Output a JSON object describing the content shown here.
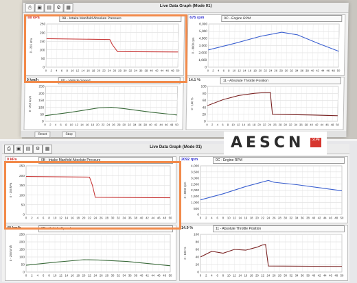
{
  "window_title": "Live Data Graph (Mode 01)",
  "toolbar_icons": [
    "print-icon",
    "save-icon",
    "open-folder-icon",
    "settings-icon",
    "chart-icon"
  ],
  "status_bar": {
    "left_button": "Reset",
    "right_button": "Stop"
  },
  "logo": {
    "text": "AESCN",
    "seal_text": "艾希"
  },
  "colors": {
    "highlight": "#f28a4a",
    "rpm_line": "#3a5fd0",
    "red_series": "#c83a3a",
    "speed_line": "#3a6a3a",
    "throttle_line": "#7a2222"
  },
  "shots": [
    {
      "panels": [
        {
          "id": "map",
          "value": "88 kPa",
          "select": "0B - Intake Manifold Absolute Pressure"
        },
        {
          "id": "rpm",
          "value": "675 rpm",
          "select": "0C - Engine RPM"
        },
        {
          "id": "speed",
          "value": "0 km/h",
          "select": "0D - Vehicle Speed"
        },
        {
          "id": "tps",
          "value": "14.1 %",
          "select": "11 - Absolute Throttle Position"
        }
      ]
    },
    {
      "panels": [
        {
          "id": "map",
          "value": "0 kPa",
          "select": "0B - Intake Manifold Absolute Pressure"
        },
        {
          "id": "rpm",
          "value": "2092 rpm",
          "select": "0C - Engine RPM"
        },
        {
          "id": "speed",
          "value": "40 km/h",
          "select": "0D - Vehicle Speed"
        },
        {
          "id": "tps",
          "value": "14.9 %",
          "select": "11 - Absolute Throttle Position"
        }
      ]
    }
  ],
  "chart_data": [
    {
      "panel": "top-map",
      "type": "line",
      "ylabel": "0 - 255 kPa",
      "ylim": [
        0,
        250
      ],
      "yticks": [
        0,
        50,
        100,
        150,
        200,
        250
      ],
      "xlim": [
        0,
        50
      ],
      "xticks": [
        0,
        2,
        4,
        6,
        8,
        10,
        12,
        14,
        16,
        18,
        20,
        22,
        24,
        26,
        28,
        30,
        32,
        34,
        36,
        38,
        40,
        42,
        44,
        46,
        48,
        50
      ],
      "series": [
        {
          "color": "#c83a3a",
          "x": [
            0,
            24,
            25,
            27,
            50
          ],
          "y": [
            165,
            160,
            130,
            90,
            88
          ]
        }
      ]
    },
    {
      "panel": "top-rpm",
      "type": "line",
      "ylabel": "0 - 8000 rpm",
      "ylim": [
        0,
        6000
      ],
      "yticks": [
        0,
        1000,
        2000,
        3000,
        4000,
        5000,
        6000
      ],
      "xlim": [
        0,
        50
      ],
      "xticks": [
        0,
        2,
        4,
        6,
        8,
        10,
        12,
        14,
        16,
        18,
        20,
        22,
        24,
        26,
        28,
        30,
        32,
        34,
        36,
        38,
        40,
        42,
        44,
        46,
        48,
        50
      ],
      "series": [
        {
          "color": "#3a5fd0",
          "x": [
            0,
            10,
            20,
            28,
            34,
            42,
            50
          ],
          "y": [
            2400,
            3300,
            4300,
            4850,
            4500,
            3300,
            2200
          ]
        }
      ]
    },
    {
      "panel": "top-speed",
      "type": "line",
      "ylabel": "0 - 255 km/h",
      "ylim": [
        0,
        250
      ],
      "yticks": [
        0,
        50,
        100,
        150,
        200,
        250
      ],
      "xlim": [
        0,
        50
      ],
      "xticks": [
        0,
        2,
        4,
        6,
        8,
        10,
        12,
        14,
        16,
        18,
        20,
        22,
        24,
        26,
        28,
        30,
        32,
        34,
        36,
        38,
        40,
        42,
        44,
        46,
        48,
        50
      ],
      "series": [
        {
          "color": "#3a6a3a",
          "x": [
            0,
            10,
            20,
            25,
            30,
            40,
            50
          ],
          "y": [
            40,
            65,
            95,
            100,
            90,
            65,
            45
          ]
        }
      ]
    },
    {
      "panel": "top-tps",
      "type": "line",
      "ylabel": "0 - 100 %",
      "ylim": [
        0,
        100
      ],
      "yticks": [
        0,
        20,
        40,
        60,
        80,
        100
      ],
      "xlim": [
        0,
        50
      ],
      "xticks": [
        0,
        2,
        4,
        6,
        8,
        10,
        12,
        14,
        16,
        18,
        20,
        22,
        24,
        26,
        28,
        30,
        32,
        34,
        36,
        38,
        40,
        42,
        44,
        46,
        48,
        50
      ],
      "series": [
        {
          "color": "#7a2222",
          "x": [
            0,
            6,
            12,
            18,
            23,
            24,
            25,
            40,
            50
          ],
          "y": [
            45,
            62,
            74,
            80,
            83,
            83,
            20,
            18,
            16
          ]
        }
      ]
    },
    {
      "panel": "bot-map",
      "type": "line",
      "ylabel": "0 - 255 kPa",
      "ylim": [
        0,
        250
      ],
      "yticks": [
        0,
        50,
        100,
        150,
        200,
        250
      ],
      "xlim": [
        0,
        50
      ],
      "xticks": [
        0,
        2,
        4,
        6,
        8,
        10,
        12,
        14,
        16,
        18,
        20,
        22,
        24,
        26,
        28,
        30,
        32,
        34,
        36,
        38,
        40,
        42,
        44,
        46,
        48,
        50
      ],
      "series": [
        {
          "color": "#c83a3a",
          "x": [
            0,
            22,
            23,
            24,
            50
          ],
          "y": [
            195,
            192,
            150,
            88,
            86
          ]
        }
      ]
    },
    {
      "panel": "bot-rpm",
      "type": "line",
      "ylabel": "0 - 8000 rpm",
      "ylim": [
        0,
        4000
      ],
      "yticks": [
        0,
        500,
        1000,
        1500,
        2000,
        2500,
        3000,
        3500,
        4000
      ],
      "xlim": [
        0,
        50
      ],
      "xticks": [
        0,
        2,
        4,
        6,
        8,
        10,
        12,
        14,
        16,
        18,
        20,
        22,
        24,
        26,
        28,
        30,
        32,
        34,
        36,
        38,
        40,
        42,
        44,
        46,
        48,
        50
      ],
      "series": [
        {
          "color": "#3a5fd0",
          "x": [
            0,
            8,
            16,
            24,
            26,
            34,
            42,
            50
          ],
          "y": [
            1200,
            1700,
            2300,
            2800,
            2650,
            2450,
            2200,
            1950
          ]
        }
      ]
    },
    {
      "panel": "bot-speed",
      "type": "line",
      "ylabel": "0 - 255 km/h",
      "ylim": [
        0,
        250
      ],
      "yticks": [
        0,
        50,
        100,
        150,
        200,
        250
      ],
      "xlim": [
        0,
        50
      ],
      "xticks": [
        0,
        2,
        4,
        6,
        8,
        10,
        12,
        14,
        16,
        18,
        20,
        22,
        24,
        26,
        28,
        30,
        32,
        34,
        36,
        38,
        40,
        42,
        44,
        46,
        48,
        50
      ],
      "series": [
        {
          "color": "#3a6a3a",
          "x": [
            0,
            10,
            20,
            25,
            35,
            50
          ],
          "y": [
            45,
            65,
            82,
            80,
            70,
            42
          ]
        }
      ]
    },
    {
      "panel": "bot-tps",
      "type": "line",
      "ylabel": "0 - 100 %",
      "ylim": [
        0,
        100
      ],
      "yticks": [
        0,
        20,
        40,
        60,
        80,
        100
      ],
      "xlim": [
        0,
        50
      ],
      "xticks": [
        0,
        2,
        4,
        6,
        8,
        10,
        12,
        14,
        16,
        18,
        20,
        22,
        24,
        26,
        28,
        30,
        32,
        34,
        36,
        38,
        40,
        42,
        44,
        46,
        48,
        50
      ],
      "series": [
        {
          "color": "#7a2222",
          "x": [
            0,
            4,
            8,
            12,
            16,
            20,
            22,
            23,
            24,
            50
          ],
          "y": [
            40,
            55,
            50,
            60,
            58,
            66,
            72,
            73,
            16,
            15
          ]
        }
      ]
    }
  ]
}
